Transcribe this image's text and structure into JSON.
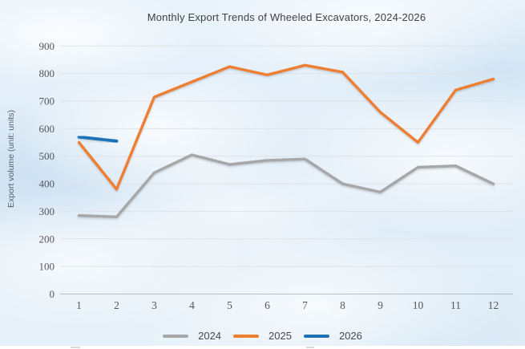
{
  "title": "Monthly Export Trends of Wheeled Excavators, 2024-2026",
  "chart_data": {
    "type": "line",
    "title": "Monthly Export Trends of Wheeled Excavators, 2024-2026",
    "xlabel": "",
    "ylabel": "Export volume (unit: units)",
    "categories": [
      1,
      2,
      3,
      4,
      5,
      6,
      7,
      8,
      9,
      10,
      11,
      12
    ],
    "ylim": [
      0,
      900
    ],
    "ytick_step": 100,
    "yticks": [
      0,
      100,
      200,
      300,
      400,
      500,
      600,
      700,
      800,
      900
    ],
    "grid": true,
    "legend_position": "bottom-center",
    "series": [
      {
        "name": "2024",
        "color": "#a7a7a7",
        "values": [
          285,
          280,
          440,
          505,
          470,
          485,
          490,
          400,
          370,
          460,
          465,
          400
        ]
      },
      {
        "name": "2025",
        "color": "#ee7e30",
        "values": [
          550,
          380,
          715,
          770,
          825,
          795,
          830,
          805,
          660,
          550,
          740,
          780
        ]
      },
      {
        "name": "2026",
        "color": "#1d72b9",
        "values": [
          570,
          555,
          null,
          null,
          null,
          null,
          null,
          null,
          null,
          null,
          null,
          null
        ]
      }
    ]
  },
  "colors": {
    "gridline": "#dde3e8",
    "axis_line": "#b6bfc7",
    "tick_text": "#54575c",
    "title_text": "#3d3f42"
  }
}
